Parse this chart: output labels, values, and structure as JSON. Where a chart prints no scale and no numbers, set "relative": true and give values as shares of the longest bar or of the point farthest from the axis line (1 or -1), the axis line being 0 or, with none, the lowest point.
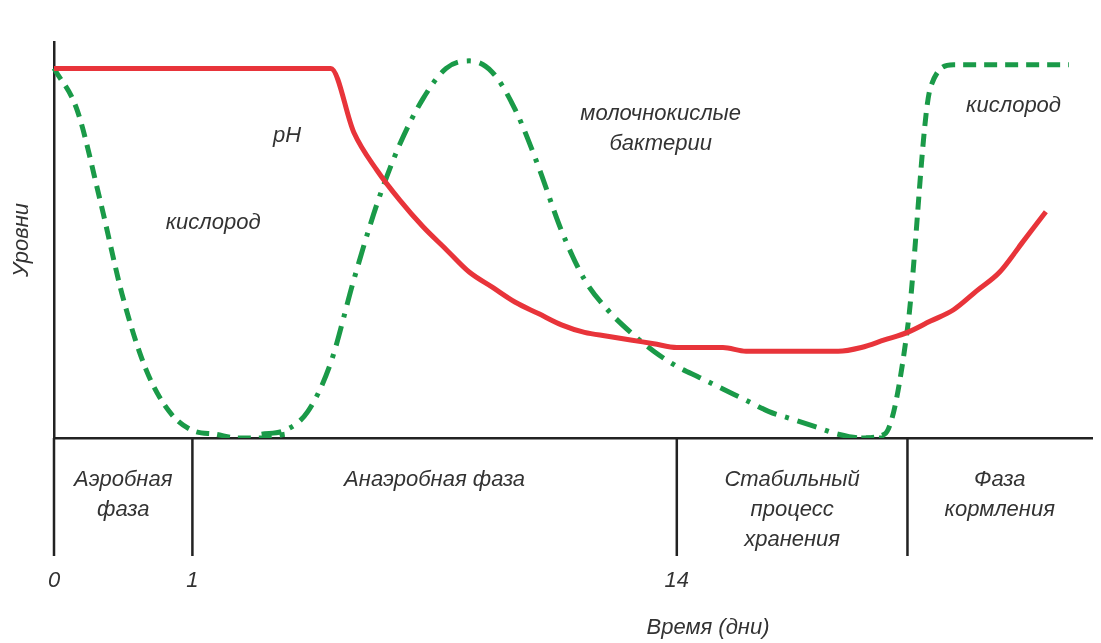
{
  "chart_data": {
    "type": "line",
    "relative": true,
    "xlabel": "Время (дни)",
    "ylabel": "Уровни",
    "categories": [
      "0",
      null,
      null,
      null,
      null,
      null,
      "1",
      null,
      null,
      null,
      null,
      null,
      null,
      null,
      null,
      null,
      null,
      null,
      null,
      null,
      null,
      null,
      null,
      null,
      null,
      null,
      null,
      "14",
      null,
      null,
      null,
      null,
      null,
      null,
      null,
      null,
      null,
      null,
      null,
      null,
      null,
      null,
      null,
      null,
      null,
      null
    ],
    "series": [
      {
        "name": "pH",
        "color": "#e8343a",
        "line_style": "solid",
        "values": [
          0.98,
          0.98,
          0.98,
          0.98,
          0.98,
          0.98,
          0.98,
          0.98,
          0.98,
          0.98,
          0.98,
          0.98,
          0.98,
          0.81,
          0.71,
          0.63,
          0.56,
          0.5,
          0.44,
          0.4,
          0.36,
          0.33,
          0.3,
          0.28,
          0.27,
          0.26,
          0.25,
          0.24,
          0.24,
          0.24,
          0.23,
          0.23,
          0.23,
          0.23,
          0.23,
          0.24,
          0.26,
          0.28,
          0.31,
          0.34,
          0.39,
          0.44,
          0.52,
          0.6,
          null,
          null
        ]
      },
      {
        "name": "кислород",
        "color": "#1a9a48",
        "line_style": "dashed",
        "values": [
          0.98,
          0.87,
          0.63,
          0.37,
          0.18,
          0.07,
          0.02,
          0.01,
          0,
          0,
          0.01,
          null,
          null,
          null,
          null,
          null,
          null,
          null,
          null,
          null,
          null,
          null,
          null,
          null,
          null,
          null,
          null,
          null,
          null,
          null,
          null,
          null,
          null,
          null,
          null,
          0,
          0.01,
          0.29,
          0.93,
          0.99,
          0.99,
          0.99,
          0.99,
          0.99,
          0.99,
          null
        ]
      },
      {
        "name": "молочнокислые бактерии",
        "color": "#1a9a48",
        "line_style": "dashdot",
        "values": [
          null,
          null,
          null,
          null,
          null,
          null,
          null,
          null,
          null,
          0.01,
          0.02,
          0.07,
          0.2,
          0.42,
          0.62,
          0.78,
          0.9,
          0.98,
          1,
          0.97,
          0.87,
          0.72,
          0.55,
          0.42,
          0.34,
          0.28,
          0.23,
          0.19,
          0.16,
          0.13,
          0.1,
          0.07,
          0.05,
          0.03,
          0.01,
          0,
          0,
          null,
          null,
          null,
          null,
          null,
          null,
          null,
          null,
          null
        ]
      }
    ],
    "annotations": [
      "Аэробная\nфаза",
      "Анаэробная фаза",
      "Стабильный\nпроцесс\nхранения",
      "Фаза\nкормления"
    ],
    "legend": false,
    "grid": false,
    "marker": "none"
  }
}
